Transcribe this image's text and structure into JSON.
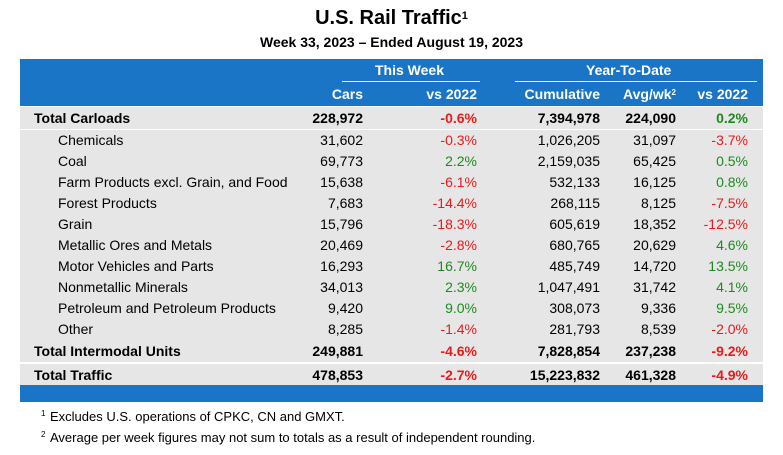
{
  "title": "U.S. Rail Traffic",
  "title_note": "1",
  "subtitle": "Week 33, 2023 – Ended August 19, 2023",
  "header": {
    "this_week": "This Week",
    "ytd": "Year-To-Date",
    "cars": "Cars",
    "vs2022": "vs 2022",
    "cumulative": "Cumulative",
    "avg": "Avg/wk",
    "avg_note": "2",
    "vs2022_ytd": "vs 2022"
  },
  "rows": [
    {
      "label": "Total Carloads",
      "cars": "228,972",
      "vs": "-0.6%",
      "cum": "7,394,978",
      "avg": "224,090",
      "vs_ytd": "0.2%"
    },
    {
      "label": "Chemicals",
      "cars": "31,602",
      "vs": "-0.3%",
      "cum": "1,026,205",
      "avg": "31,097",
      "vs_ytd": "-3.7%"
    },
    {
      "label": "Coal",
      "cars": "69,773",
      "vs": "2.2%",
      "cum": "2,159,035",
      "avg": "65,425",
      "vs_ytd": "0.5%"
    },
    {
      "label": "Farm Products excl. Grain, and Food",
      "cars": "15,638",
      "vs": "-6.1%",
      "cum": "532,133",
      "avg": "16,125",
      "vs_ytd": "0.8%"
    },
    {
      "label": "Forest Products",
      "cars": "7,683",
      "vs": "-14.4%",
      "cum": "268,115",
      "avg": "8,125",
      "vs_ytd": "-7.5%"
    },
    {
      "label": "Grain",
      "cars": "15,796",
      "vs": "-18.3%",
      "cum": "605,619",
      "avg": "18,352",
      "vs_ytd": "-12.5%"
    },
    {
      "label": "Metallic Ores and Metals",
      "cars": "20,469",
      "vs": "-2.8%",
      "cum": "680,765",
      "avg": "20,629",
      "vs_ytd": "4.6%"
    },
    {
      "label": "Motor Vehicles and Parts",
      "cars": "16,293",
      "vs": "16.7%",
      "cum": "485,749",
      "avg": "14,720",
      "vs_ytd": "13.5%"
    },
    {
      "label": "Nonmetallic Minerals",
      "cars": "34,013",
      "vs": "2.3%",
      "cum": "1,047,491",
      "avg": "31,742",
      "vs_ytd": "4.1%"
    },
    {
      "label": "Petroleum and Petroleum Products",
      "cars": "9,420",
      "vs": "9.0%",
      "cum": "308,073",
      "avg": "9,336",
      "vs_ytd": "9.5%"
    },
    {
      "label": "Other",
      "cars": "8,285",
      "vs": "-1.4%",
      "cum": "281,793",
      "avg": "8,539",
      "vs_ytd": "-2.0%"
    },
    {
      "label": "Total Intermodal Units",
      "cars": "249,881",
      "vs": "-4.6%",
      "cum": "7,828,854",
      "avg": "237,238",
      "vs_ytd": "-9.2%"
    },
    {
      "label": "Total Traffic",
      "cars": "478,853",
      "vs": "-2.7%",
      "cum": "15,223,832",
      "avg": "461,328",
      "vs_ytd": "-4.9%"
    }
  ],
  "footnotes": [
    {
      "mark": "1",
      "text": "Excludes U.S. operations of CPKC, CN and GMXT."
    },
    {
      "mark": "2",
      "text": "Average per week figures may not sum to totals as a result of independent rounding."
    }
  ],
  "colors": {
    "header": "#1b75c6",
    "negative": "#e81a1a",
    "positive": "#1e8a1e",
    "row": "#e6e6e6"
  }
}
